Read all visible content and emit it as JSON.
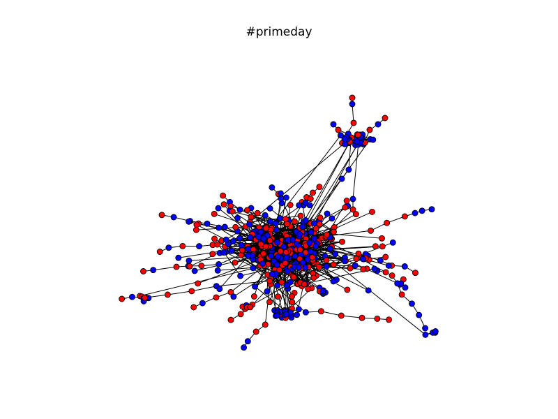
{
  "figure": {
    "title": "#primeday"
  },
  "colors": {
    "node_a": "#ff0000",
    "node_b": "#0000ff",
    "edge": "#000000",
    "node_outline": "#000000",
    "background": "#ffffff"
  },
  "graph": {
    "type": "network",
    "node_classes": [
      "node_a",
      "node_b"
    ],
    "clusters": [
      "main",
      "top",
      "bottom"
    ]
  }
}
